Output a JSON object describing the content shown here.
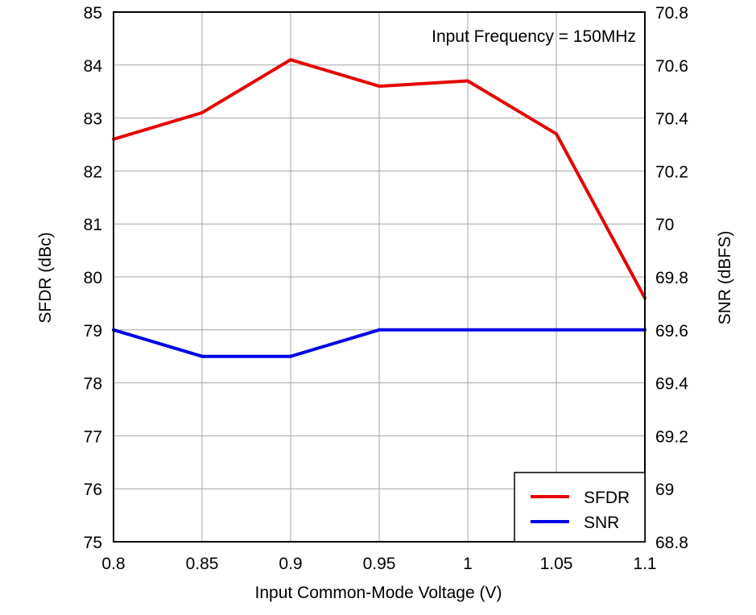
{
  "chart_data": {
    "type": "line",
    "annotation": "Input Frequency = 150MHz",
    "xlabel": "Input Common-Mode Voltage (V)",
    "ylabel_left": "SFDR (dBc)",
    "ylabel_right": "SNR (dBFS)",
    "x": [
      0.8,
      0.85,
      0.9,
      0.95,
      1.0,
      1.05,
      1.1
    ],
    "xlim": [
      0.8,
      1.1
    ],
    "ylim_left": [
      75,
      85
    ],
    "ylim_right": [
      68.8,
      70.8
    ],
    "x_ticks": [
      "0.8",
      "0.85",
      "0.9",
      "0.95",
      "1",
      "1.05",
      "1.1"
    ],
    "y_ticks_left": [
      "75",
      "76",
      "77",
      "78",
      "79",
      "80",
      "81",
      "82",
      "83",
      "84",
      "85"
    ],
    "y_ticks_right": [
      "68.8",
      "69",
      "69.2",
      "69.4",
      "69.6",
      "69.8",
      "70",
      "70.2",
      "70.4",
      "70.6",
      "70.8"
    ],
    "grid": true,
    "legend_position": "bottom-right",
    "series": [
      {
        "name": "SFDR",
        "axis": "left",
        "color": "#e60000",
        "values": [
          82.6,
          83.1,
          84.1,
          83.6,
          83.7,
          82.7,
          79.6
        ]
      },
      {
        "name": "SNR",
        "axis": "right",
        "color": "#0000e6",
        "values": [
          69.6,
          69.5,
          69.5,
          69.6,
          69.6,
          69.6,
          69.6
        ]
      }
    ]
  }
}
